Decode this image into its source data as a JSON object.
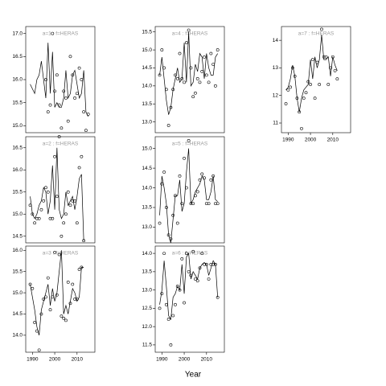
{
  "xlabel": "Year",
  "chart_data": [
    {
      "type": "line",
      "title": "a=1 : f=HERAS",
      "show_xticks": false,
      "x": [
        1989,
        1990,
        1991,
        1992,
        1993,
        1994,
        1995,
        1996,
        1997,
        1998,
        1999,
        2000,
        2001,
        2002,
        2003,
        2004,
        2005,
        2006,
        2007,
        2008,
        2009,
        2010,
        2011,
        2012,
        2013,
        2014,
        2015
      ],
      "xlim": [
        1987,
        2018
      ],
      "xticks": [
        1990,
        2000,
        2010
      ],
      "ylim": [
        14.85,
        17.15
      ],
      "yticks": [
        {
          "value": 15,
          "label": "15.0"
        },
        {
          "value": 15.5,
          "label": "15.5"
        },
        {
          "value": 16,
          "label": "16.0"
        },
        {
          "value": 16.5,
          "label": "16.5"
        },
        {
          "value": 17,
          "label": "17.0"
        }
      ],
      "series": [
        {
          "style": "line",
          "color": "#000000",
          "values": [
            15.9,
            15.8,
            15.7,
            16.0,
            16.1,
            16.4,
            16.0,
            15.6,
            16.8,
            15.7,
            16.6,
            15.4,
            15.5,
            15.4,
            15.4,
            15.6,
            16.2,
            15.6,
            15.7,
            16.1,
            16.2,
            15.9,
            15.6,
            15.7,
            16.2,
            15.3,
            15.2
          ]
        },
        {
          "style": "points",
          "color": "#000000",
          "values": [
            null,
            null,
            null,
            null,
            null,
            null,
            null,
            16.0,
            15.3,
            15.45,
            17.0,
            15.75,
            16.1,
            15.45,
            14.95,
            15.75,
            15.6,
            15.1,
            16.5,
            16.1,
            15.6,
            15.7,
            16.25,
            16.0,
            15.3,
            14.9,
            15.25
          ]
        }
      ]
    },
    {
      "type": "line",
      "title": "a=2 : f=HERAS",
      "show_xticks": false,
      "x": [
        1989,
        1990,
        1991,
        1992,
        1993,
        1994,
        1995,
        1996,
        1997,
        1998,
        1999,
        2000,
        2001,
        2002,
        2003,
        2004,
        2005,
        2006,
        2007,
        2008,
        2009,
        2010,
        2011,
        2012,
        2013,
        2014,
        2015
      ],
      "xlim": [
        1987,
        2018
      ],
      "xticks": [
        1990,
        2000,
        2010
      ],
      "ylim": [
        14.35,
        16.75
      ],
      "yticks": [
        {
          "value": 14.5,
          "label": "14.5"
        },
        {
          "value": 15,
          "label": "15.0"
        },
        {
          "value": 15.5,
          "label": "15.5"
        },
        {
          "value": 16,
          "label": "16.0"
        },
        {
          "value": 16.5,
          "label": "16.5"
        }
      ],
      "series": [
        {
          "style": "line",
          "color": "#000000",
          "values": [
            15.4,
            15.0,
            14.9,
            15.0,
            15.2,
            15.3,
            15.6,
            15.5,
            15.0,
            15.3,
            16.1,
            15.1,
            16.5,
            15.1,
            14.9,
            15.0,
            15.5,
            15.2,
            15.3,
            15.4,
            15.1,
            15.4,
            15.8,
            15.9,
            14.4,
            null,
            null
          ]
        },
        {
          "style": "points",
          "color": "#000000",
          "values": [
            15.2,
            15.0,
            14.8,
            14.9,
            14.9,
            15.1,
            15.3,
            15.6,
            15.5,
            14.9,
            14.9,
            16.3,
            15.4,
            16.75,
            14.5,
            14.8,
            15.0,
            15.5,
            15.2,
            15.3,
            15.3,
            14.8,
            16.05,
            16.3,
            14.4,
            null,
            null
          ]
        }
      ]
    },
    {
      "type": "line",
      "title": "a=3 : f=HERAS",
      "show_xticks": true,
      "x": [
        1989,
        1990,
        1991,
        1992,
        1993,
        1994,
        1995,
        1996,
        1997,
        1998,
        1999,
        2000,
        2001,
        2002,
        2003,
        2004,
        2005,
        2006,
        2007,
        2008,
        2009,
        2010,
        2011,
        2012,
        2013,
        2014,
        2015
      ],
      "xlim": [
        1987,
        2018
      ],
      "xticks": [
        1990,
        2000,
        2010
      ],
      "ylim": [
        13.6,
        16.1
      ],
      "yticks": [
        {
          "value": 14,
          "label": "14.0"
        },
        {
          "value": 14.5,
          "label": "14.5"
        },
        {
          "value": 15,
          "label": "15.0"
        },
        {
          "value": 15.5,
          "label": "15.5"
        },
        {
          "value": 16,
          "label": "16.0"
        }
      ],
      "series": [
        {
          "style": "line",
          "color": "#000000",
          "values": [
            15.2,
            14.9,
            14.6,
            14.2,
            14.0,
            14.6,
            14.8,
            15.0,
            15.2,
            14.7,
            15.1,
            14.8,
            15.0,
            15.5,
            16.0,
            14.5,
            14.7,
            14.5,
            14.8,
            15.1,
            15.0,
            14.8,
            14.9,
            15.6,
            15.6,
            null,
            null
          ]
        },
        {
          "style": "points",
          "color": "#000000",
          "values": [
            15.2,
            15.1,
            14.3,
            14.1,
            13.65,
            14.5,
            14.85,
            14.9,
            15.35,
            14.6,
            14.9,
            15.95,
            14.95,
            15.9,
            14.45,
            14.4,
            14.35,
            15.25,
            14.75,
            15.2,
            14.85,
            14.85,
            15.55,
            15.6,
            null,
            null,
            null
          ]
        }
      ]
    },
    {
      "type": "line",
      "title": "a=4 : f=HERAS",
      "show_xticks": false,
      "x": [
        1989,
        1990,
        1991,
        1992,
        1993,
        1994,
        1995,
        1996,
        1997,
        1998,
        1999,
        2000,
        2001,
        2002,
        2003,
        2004,
        2005,
        2006,
        2007,
        2008,
        2009,
        2010,
        2011,
        2012,
        2013,
        2014,
        2015
      ],
      "xlim": [
        1987,
        2018
      ],
      "xticks": [
        1990,
        2000,
        2010
      ],
      "ylim": [
        12.7,
        15.65
      ],
      "yticks": [
        {
          "value": 13,
          "label": "13.0"
        },
        {
          "value": 13.5,
          "label": "13.5"
        },
        {
          "value": 14,
          "label": "14.0"
        },
        {
          "value": 14.5,
          "label": "14.5"
        },
        {
          "value": 15,
          "label": "15.0"
        },
        {
          "value": 15.5,
          "label": "15.5"
        }
      ],
      "series": [
        {
          "style": "line",
          "color": "#000000",
          "values": [
            14.3,
            14.8,
            14.2,
            13.6,
            13.2,
            13.4,
            13.9,
            14.2,
            14.5,
            14.1,
            14.2,
            15.2,
            14.1,
            15.5,
            14.0,
            14.1,
            14.6,
            14.4,
            14.9,
            14.8,
            14.2,
            14.9,
            14.5,
            14.3,
            14.3,
            14.8,
            14.9
          ]
        },
        {
          "style": "points",
          "color": "#000000",
          "values": [
            14.3,
            15.0,
            14.5,
            13.9,
            12.9,
            13.4,
            13.9,
            14.3,
            14.2,
            14.9,
            14.2,
            14.1,
            15.2,
            15.55,
            14.5,
            13.7,
            13.8,
            14.2,
            14.1,
            14.4,
            14.8,
            14.3,
            14.1,
            14.9,
            14.6,
            14.0,
            15.0
          ]
        }
      ]
    },
    {
      "type": "line",
      "title": "a=5 : f=HERAS",
      "show_xticks": false,
      "x": [
        1989,
        1990,
        1991,
        1992,
        1993,
        1994,
        1995,
        1996,
        1997,
        1998,
        1999,
        2000,
        2001,
        2002,
        2003,
        2004,
        2005,
        2006,
        2007,
        2008,
        2009,
        2010,
        2011,
        2012,
        2013,
        2014,
        2015
      ],
      "xlim": [
        1987,
        2018
      ],
      "xticks": [
        1990,
        2000,
        2010
      ],
      "ylim": [
        12.6,
        15.3
      ],
      "yticks": [
        {
          "value": 13,
          "label": "13.0"
        },
        {
          "value": 13.5,
          "label": "13.5"
        },
        {
          "value": 14,
          "label": "14.0"
        },
        {
          "value": 14.5,
          "label": "14.5"
        },
        {
          "value": 15,
          "label": "15.0"
        }
      ],
      "series": [
        {
          "style": "line",
          "color": "#000000",
          "values": [
            13.3,
            14.3,
            14.0,
            13.6,
            12.8,
            12.6,
            13.2,
            13.8,
            13.8,
            14.2,
            13.4,
            13.6,
            14.4,
            15.0,
            13.6,
            13.7,
            13.9,
            14.0,
            14.1,
            14.3,
            14.2,
            13.7,
            13.7,
            13.9,
            14.3,
            13.7,
            13.65
          ]
        },
        {
          "style": "points",
          "color": "#000000",
          "values": [
            13.1,
            14.1,
            14.4,
            13.5,
            12.8,
            12.7,
            13.3,
            13.8,
            13.1,
            14.3,
            13.6,
            14.75,
            14.0,
            15.2,
            13.6,
            13.6,
            13.8,
            13.9,
            14.2,
            14.35,
            14.25,
            13.6,
            13.6,
            14.2,
            14.3,
            13.6,
            13.6
          ]
        }
      ]
    },
    {
      "type": "line",
      "title": "a=6 : f=HERAS",
      "show_xticks": true,
      "x": [
        1989,
        1990,
        1991,
        1992,
        1993,
        1994,
        1995,
        1996,
        1997,
        1998,
        1999,
        2000,
        2001,
        2002,
        2003,
        2004,
        2005,
        2006,
        2007,
        2008,
        2009,
        2010,
        2011,
        2012,
        2013,
        2014,
        2015
      ],
      "xlim": [
        1987,
        2018
      ],
      "xticks": [
        1990,
        2000,
        2010
      ],
      "ylim": [
        11.3,
        14.2
      ],
      "yticks": [
        {
          "value": 11.5,
          "label": "11.5"
        },
        {
          "value": 12,
          "label": "12.0"
        },
        {
          "value": 12.5,
          "label": "12.5"
        },
        {
          "value": 13,
          "label": "13.0"
        },
        {
          "value": 13.5,
          "label": "13.5"
        },
        {
          "value": 14,
          "label": "14.0"
        }
      ],
      "series": [
        {
          "style": "line",
          "color": "#000000",
          "values": [
            12.6,
            13.0,
            13.8,
            13.1,
            12.3,
            12.2,
            12.8,
            12.9,
            13.1,
            13.0,
            13.7,
            12.9,
            13.9,
            14.0,
            13.3,
            13.5,
            13.4,
            13.3,
            13.6,
            13.7,
            13.75,
            13.7,
            13.4,
            13.6,
            13.8,
            13.7,
            12.8
          ]
        },
        {
          "style": "points",
          "color": "#000000",
          "values": [
            12.5,
            12.9,
            14.0,
            12.6,
            12.2,
            11.5,
            12.3,
            12.6,
            13.1,
            13.0,
            13.85,
            12.65,
            14.0,
            13.5,
            13.4,
            14.05,
            13.3,
            13.25,
            13.6,
            14.0,
            13.7,
            13.7,
            13.3,
            13.7,
            13.7,
            13.7,
            12.8
          ]
        }
      ]
    },
    {
      "type": "line",
      "title": "a=7 : f=HERAS",
      "show_xticks": true,
      "x": [
        1989,
        1990,
        1991,
        1992,
        1993,
        1994,
        1995,
        1996,
        1997,
        1998,
        1999,
        2000,
        2001,
        2002,
        2003,
        2004,
        2005,
        2006,
        2007,
        2008,
        2009,
        2010,
        2011,
        2012,
        2013,
        2014,
        2015
      ],
      "xlim": [
        1987,
        2018
      ],
      "xticks": [
        1990,
        2000,
        2010
      ],
      "ylim": [
        10.65,
        14.5
      ],
      "yticks": [
        11,
        12,
        13,
        14
      ],
      "series": [
        {
          "style": "line",
          "color": "#000000",
          "values": [
            12.2,
            12.3,
            12.6,
            13.1,
            12.7,
            11.9,
            11.4,
            11.9,
            12.2,
            12.3,
            12.4,
            13.3,
            12.6,
            13.4,
            13.0,
            13.3,
            14.2,
            13.3,
            13.3,
            13.4,
            12.7,
            13.4,
            13.1,
            12.9,
            null,
            null,
            null
          ]
        },
        {
          "style": "points",
          "color": "#000000",
          "values": [
            11.7,
            12.2,
            12.3,
            13.0,
            12.7,
            11.9,
            11.4,
            10.8,
            11.9,
            12.1,
            12.5,
            12.4,
            13.3,
            11.9,
            13.2,
            12.4,
            14.4,
            13.4,
            13.4,
            12.4,
            13.0,
            13.4,
            12.9,
            12.6,
            null,
            null,
            null
          ]
        }
      ]
    }
  ]
}
